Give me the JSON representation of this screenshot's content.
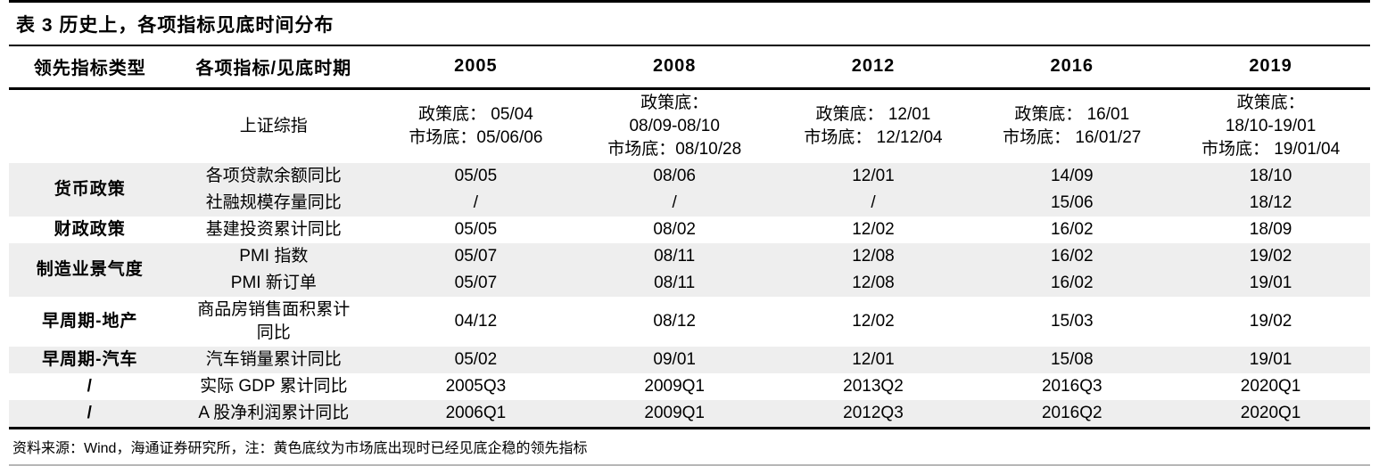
{
  "title": "表 3 历史上，各项指标见底时间分布",
  "footer": "资料来源：Wind，海通证券研究所，注：黄色底纹为市场底出现时已经见底企稳的领先指标",
  "colors": {
    "shaded_row": "#eeeeee",
    "rule": "#000000",
    "footer_rule": "#b7b7b7"
  },
  "table": {
    "columns": [
      "领先指标类型",
      "各项指标/见底时期",
      "2005",
      "2008",
      "2012",
      "2016",
      "2019"
    ],
    "rows": [
      {
        "group": "",
        "group_span": 1,
        "indicator": "上证综指",
        "values": [
          "政策底： 05/04\n市场底：05/06/06",
          "政策底：\n08/09-08/10\n市场底：08/10/28",
          "政策底： 12/01\n市场底： 12/12/04",
          "政策底： 16/01\n市场底： 16/01/27",
          "政策底：\n18/10-19/01\n市场底： 19/01/04"
        ],
        "shaded": false
      },
      {
        "group": "货币政策",
        "group_span": 2,
        "indicator": "各项贷款余额同比",
        "values": [
          "05/05",
          "08/06",
          "12/01",
          "14/09",
          "18/10"
        ],
        "shaded": true
      },
      {
        "group": null,
        "indicator": "社融规模存量同比",
        "values": [
          "/",
          "/",
          "/",
          "15/06",
          "18/12"
        ],
        "shaded": true
      },
      {
        "group": "财政政策",
        "group_span": 1,
        "indicator": "基建投资累计同比",
        "values": [
          "05/05",
          "08/02",
          "12/02",
          "16/02",
          "18/09"
        ],
        "shaded": false
      },
      {
        "group": "制造业景气度",
        "group_span": 2,
        "indicator": "PMI 指数",
        "values": [
          "05/07",
          "08/11",
          "12/08",
          "16/02",
          "19/02"
        ],
        "shaded": true
      },
      {
        "group": null,
        "indicator": "PMI 新订单",
        "values": [
          "05/07",
          "08/11",
          "12/08",
          "16/02",
          "19/01"
        ],
        "shaded": true
      },
      {
        "group": "早周期-地产",
        "group_span": 1,
        "indicator": "商品房销售面积累计\n同比",
        "values": [
          "04/12",
          "08/12",
          "12/02",
          "15/03",
          "19/02"
        ],
        "shaded": false
      },
      {
        "group": "早周期-汽车",
        "group_span": 1,
        "indicator": "汽车销量累计同比",
        "values": [
          "05/02",
          "09/01",
          "12/01",
          "15/08",
          "19/01"
        ],
        "shaded": true
      },
      {
        "group": "/",
        "group_span": 1,
        "indicator": "实际 GDP 累计同比",
        "values": [
          "2005Q3",
          "2009Q1",
          "2013Q2",
          "2016Q3",
          "2020Q1"
        ],
        "shaded": false
      },
      {
        "group": "/",
        "group_span": 1,
        "indicator": "A 股净利润累计同比",
        "values": [
          "2006Q1",
          "2009Q1",
          "2012Q3",
          "2016Q2",
          "2020Q1"
        ],
        "shaded": true
      }
    ]
  }
}
